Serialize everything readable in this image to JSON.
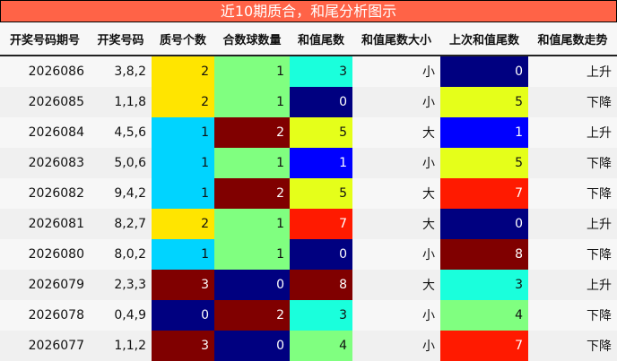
{
  "title": "近10期质合，和尾分析图示",
  "headers": [
    "开奖号码期号",
    "开奖号码",
    "质号个数",
    "合数球数量",
    "和值尾数",
    "和值尾数大小",
    "上次和值尾数",
    "和值尾数走势"
  ],
  "colors": {
    "yellow": "#FFE500",
    "green": "#80FF80",
    "cyan": "#1AFFDC",
    "navy": "#000080",
    "ygreen": "#E5FF1A",
    "blue": "#0000FF",
    "red": "#FF1A00",
    "maroon": "#800000",
    "sky": "#00D4FF"
  },
  "rows": [
    {
      "period": "2026086",
      "numbers": "3,8,2",
      "prime": "2",
      "prime_color": "yellow",
      "composite": "1",
      "composite_color": "green",
      "tail": "3",
      "tail_color": "cyan",
      "size": "小",
      "prev": "0",
      "prev_color": "navy",
      "trend": "上升"
    },
    {
      "period": "2026085",
      "numbers": "1,1,8",
      "prime": "2",
      "prime_color": "yellow",
      "composite": "1",
      "composite_color": "green",
      "tail": "0",
      "tail_color": "navy",
      "size": "小",
      "prev": "5",
      "prev_color": "ygreen",
      "trend": "下降"
    },
    {
      "period": "2026084",
      "numbers": "4,5,6",
      "prime": "1",
      "prime_color": "sky",
      "composite": "2",
      "composite_color": "maroon",
      "tail": "5",
      "tail_color": "ygreen",
      "size": "大",
      "prev": "1",
      "prev_color": "blue",
      "trend": "上升"
    },
    {
      "period": "2026083",
      "numbers": "5,0,6",
      "prime": "1",
      "prime_color": "sky",
      "composite": "1",
      "composite_color": "green",
      "tail": "1",
      "tail_color": "blue",
      "size": "小",
      "prev": "5",
      "prev_color": "ygreen",
      "trend": "下降"
    },
    {
      "period": "2026082",
      "numbers": "9,4,2",
      "prime": "1",
      "prime_color": "sky",
      "composite": "2",
      "composite_color": "maroon",
      "tail": "5",
      "tail_color": "ygreen",
      "size": "大",
      "prev": "7",
      "prev_color": "red",
      "trend": "下降"
    },
    {
      "period": "2026081",
      "numbers": "8,2,7",
      "prime": "2",
      "prime_color": "yellow",
      "composite": "1",
      "composite_color": "green",
      "tail": "7",
      "tail_color": "red",
      "size": "大",
      "prev": "0",
      "prev_color": "navy",
      "trend": "上升"
    },
    {
      "period": "2026080",
      "numbers": "8,0,2",
      "prime": "1",
      "prime_color": "sky",
      "composite": "1",
      "composite_color": "green",
      "tail": "0",
      "tail_color": "navy",
      "size": "小",
      "prev": "8",
      "prev_color": "maroon",
      "trend": "下降"
    },
    {
      "period": "2026079",
      "numbers": "2,3,3",
      "prime": "3",
      "prime_color": "maroon",
      "composite": "0",
      "composite_color": "navy",
      "tail": "8",
      "tail_color": "maroon",
      "size": "大",
      "prev": "3",
      "prev_color": "cyan",
      "trend": "上升"
    },
    {
      "period": "2026078",
      "numbers": "0,4,9",
      "prime": "0",
      "prime_color": "navy",
      "composite": "2",
      "composite_color": "maroon",
      "tail": "3",
      "tail_color": "cyan",
      "size": "小",
      "prev": "4",
      "prev_color": "green",
      "trend": "下降"
    },
    {
      "period": "2026077",
      "numbers": "1,1,2",
      "prime": "3",
      "prime_color": "maroon",
      "composite": "0",
      "composite_color": "navy",
      "tail": "4",
      "tail_color": "green",
      "size": "小",
      "prev": "7",
      "prev_color": "red",
      "trend": "下降"
    }
  ]
}
